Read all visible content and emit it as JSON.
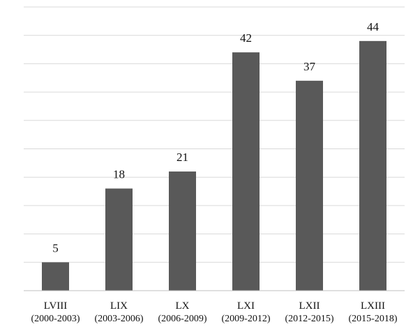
{
  "chart_data": {
    "type": "bar",
    "title": "",
    "xlabel": "",
    "ylabel": "",
    "categories": [
      {
        "name": "LVIII",
        "period": "(2000-2003)"
      },
      {
        "name": "LIX",
        "period": "(2003-2006)"
      },
      {
        "name": "LX",
        "period": "(2006-2009)"
      },
      {
        "name": "LXI",
        "period": "(2009-2012)"
      },
      {
        "name": "LXII",
        "period": "(2012-2015)"
      },
      {
        "name": "LXIII",
        "period": "(2015-2018)"
      }
    ],
    "values": [
      5,
      18,
      21,
      42,
      37,
      44
    ],
    "ylim": [
      0,
      50
    ],
    "gridlines": true,
    "gridline_step": 5,
    "legend": false,
    "data_labels": true,
    "bar_color": "#595959",
    "grid_color": "#d9d9d9",
    "axis_color": "#bfbfbf"
  }
}
